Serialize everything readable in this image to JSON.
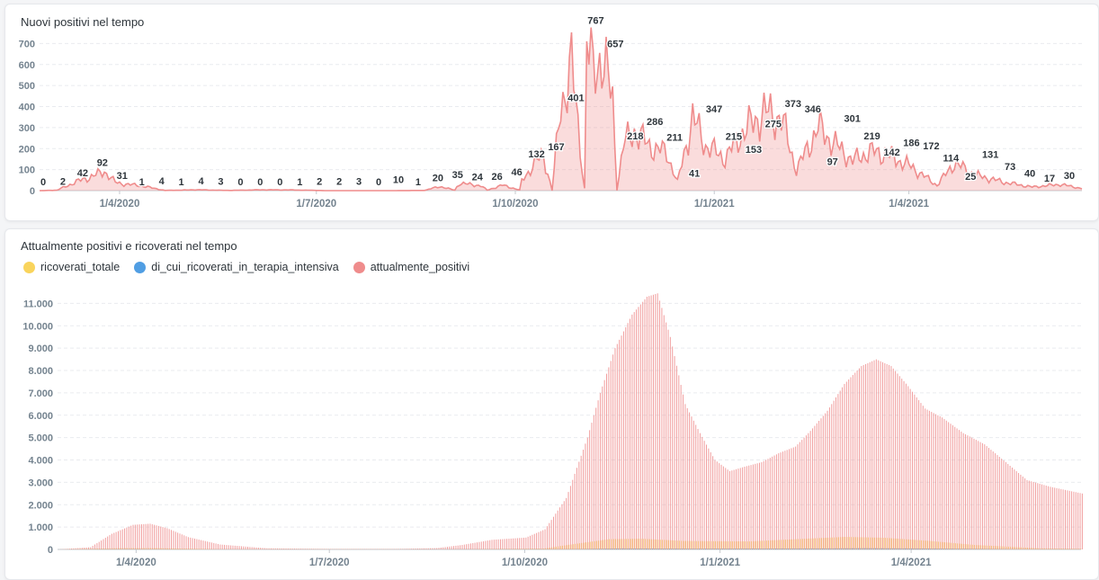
{
  "colors": {
    "attualmente_positivi": "#ef8c8c",
    "ricoverati_totale": "#f9d45c",
    "terapia_intensiva": "#509ee3",
    "grid": "#e9ebef",
    "axis_text": "#74838f"
  },
  "chart_data": [
    {
      "type": "area",
      "title": "Nuovi positivi nel tempo",
      "xlabel": "",
      "ylabel": "",
      "ylim": [
        0,
        800
      ],
      "yticks": [
        "0",
        "100",
        "200",
        "300",
        "400",
        "500",
        "600",
        "700"
      ],
      "xticks": [
        "1/4/2020",
        "1/7/2020",
        "1/10/2020",
        "1/1/2021",
        "1/4/2021"
      ],
      "x_range": [
        "2020-02-24",
        "2021-06-20"
      ],
      "grid": true,
      "series": [
        {
          "name": "",
          "points": [
            [
              "2020-02-24",
              0
            ],
            [
              "2020-03-03",
              2
            ],
            [
              "2020-03-12",
              42
            ],
            [
              "2020-03-20",
              70
            ],
            [
              "2020-03-25",
              92
            ],
            [
              "2020-03-30",
              40
            ],
            [
              "2020-04-03",
              31
            ],
            [
              "2020-04-10",
              25
            ],
            [
              "2020-04-22",
              1
            ],
            [
              "2020-05-07",
              4
            ],
            [
              "2020-05-22",
              1
            ],
            [
              "2020-06-06",
              4
            ],
            [
              "2020-06-21",
              3
            ],
            [
              "2020-07-06",
              0
            ],
            [
              "2020-07-21",
              0
            ],
            [
              "2020-08-05",
              0
            ],
            [
              "2020-08-20",
              1
            ],
            [
              "2020-09-03",
              2
            ],
            [
              "2020-09-18",
              2
            ],
            [
              "2020-10-03",
              3
            ],
            [
              "2020-10-18",
              0
            ],
            [
              "2020-11-02",
              10
            ],
            [
              "2020-11-17",
              1
            ],
            [
              "2020-08-27",
              20
            ],
            [
              "2020-09-05",
              35
            ],
            [
              "2020-09-15",
              24
            ],
            [
              "2020-09-25",
              26
            ],
            [
              "2020-10-04",
              46
            ],
            [
              "2020-10-10",
              132
            ],
            [
              "2020-10-14",
              167
            ],
            [
              "2020-10-22",
              401
            ],
            [
              "2020-10-27",
              600
            ],
            [
              "2020-11-02",
              767
            ],
            [
              "2020-11-06",
              550
            ],
            [
              "2020-11-10",
              657
            ],
            [
              "2020-11-15",
              420
            ],
            [
              "2020-11-20",
              218
            ],
            [
              "2020-11-25",
              286
            ],
            [
              "2020-12-02",
              211
            ],
            [
              "2020-12-10",
              180
            ],
            [
              "2020-12-15",
              41
            ],
            [
              "2020-12-22",
              347
            ],
            [
              "2020-12-28",
              215
            ],
            [
              "2021-01-06",
              153
            ],
            [
              "2021-01-14",
              275
            ],
            [
              "2021-01-24",
              373
            ],
            [
              "2021-02-01",
              346
            ],
            [
              "2021-02-08",
              97
            ],
            [
              "2021-02-18",
              301
            ],
            [
              "2021-02-26",
              219
            ],
            [
              "2021-03-06",
              142
            ],
            [
              "2021-03-14",
              186
            ],
            [
              "2021-03-22",
              172
            ],
            [
              "2021-04-02",
              114
            ],
            [
              "2021-04-14",
              25
            ],
            [
              "2021-04-22",
              131
            ],
            [
              "2021-05-02",
              73
            ],
            [
              "2021-05-15",
              40
            ],
            [
              "2021-05-28",
              17
            ],
            [
              "2021-06-10",
              30
            ],
            [
              "2021-06-20",
              10
            ]
          ]
        }
      ],
      "data_labels": [
        {
          "x": "2020-02-24",
          "label": "0"
        },
        {
          "x": "2020-03-05",
          "label": "2"
        },
        {
          "x": "2020-03-16",
          "label": "42"
        },
        {
          "x": "2020-03-27",
          "label": "92"
        },
        {
          "x": "2020-04-07",
          "label": "31"
        },
        {
          "x": "2020-04-18",
          "label": "1"
        },
        {
          "x": "2020-04-29",
          "label": "4"
        },
        {
          "x": "2020-05-10",
          "label": "1"
        },
        {
          "x": "2020-05-21",
          "label": "4"
        },
        {
          "x": "2020-06-01",
          "label": "3"
        },
        {
          "x": "2020-06-12",
          "label": "0"
        },
        {
          "x": "2020-06-23",
          "label": "0"
        },
        {
          "x": "2020-07-04",
          "label": "0"
        },
        {
          "x": "2020-07-15",
          "label": "1"
        },
        {
          "x": "2020-07-26",
          "label": "2"
        },
        {
          "x": "2020-08-06",
          "label": "2"
        },
        {
          "x": "2020-08-17",
          "label": "3"
        },
        {
          "x": "2020-08-28",
          "label": "0"
        },
        {
          "x": "2020-09-08",
          "label": "10"
        },
        {
          "x": "2020-09-19",
          "label": "1"
        },
        {
          "x": "2020-09-30",
          "label": "20"
        },
        {
          "x": "2020-10-11",
          "label": "35"
        },
        {
          "x": "2020-10-22",
          "label": "24"
        },
        {
          "x": "2020-11-02",
          "label": "26"
        },
        {
          "x": "2020-11-13",
          "label": "46"
        },
        {
          "x": "2020-11-24",
          "label": "132"
        },
        {
          "x": "2020-11-30",
          "label": "167"
        },
        {
          "x": "2020-12-10",
          "label": "401"
        },
        {
          "x": "2020-12-21",
          "label": "767"
        },
        {
          "x": "2021-01-01",
          "label": "657"
        },
        {
          "x": "2021-01-12",
          "label": "218"
        },
        {
          "x": "2021-01-23",
          "label": "286"
        },
        {
          "x": "2021-02-03",
          "label": "211"
        },
        {
          "x": "2021-02-14",
          "label": "41"
        },
        {
          "x": "2021-02-25",
          "label": "347"
        },
        {
          "x": "2021-03-08",
          "label": "215"
        },
        {
          "x": "2021-03-19",
          "label": "153"
        },
        {
          "x": "2021-03-30",
          "label": "275"
        },
        {
          "x": "2021-04-10",
          "label": "373"
        },
        {
          "x": "2021-04-21",
          "label": "346"
        },
        {
          "x": "2021-05-02",
          "label": "97"
        },
        {
          "x": "2021-05-13",
          "label": "301"
        },
        {
          "x": "2021-05-24",
          "label": "219"
        },
        {
          "x": "2021-06-04",
          "label": "142"
        },
        {
          "x": "2021-06-15",
          "label": "186"
        },
        {
          "x": "2021-06-26",
          "label": "172"
        },
        {
          "x": "2021-07-07",
          "label": "114"
        },
        {
          "x": "2021-07-18",
          "label": "25"
        },
        {
          "x": "2021-07-29",
          "label": "131"
        },
        {
          "x": "2021-08-09",
          "label": "73"
        },
        {
          "x": "2021-08-20",
          "label": "40"
        },
        {
          "x": "2021-08-31",
          "label": "17"
        },
        {
          "x": "2021-09-11",
          "label": "30"
        }
      ]
    },
    {
      "type": "bar",
      "title": "Attualmente positivi e ricoverati nel tempo",
      "xlabel": "",
      "ylabel": "",
      "ylim": [
        0,
        11500
      ],
      "yticks": [
        "0",
        "1.000",
        "2.000",
        "3.000",
        "4.000",
        "5.000",
        "6.000",
        "7.000",
        "8.000",
        "9.000",
        "10.000",
        "11.000"
      ],
      "xticks": [
        "1/4/2020",
        "1/7/2020",
        "1/10/2020",
        "1/1/2021",
        "1/4/2021"
      ],
      "x_range": [
        "2020-02-24",
        "2021-06-20"
      ],
      "grid": true,
      "legend": "top-left",
      "series": [
        {
          "name": "ricoverati_totale",
          "points": [
            [
              "2020-02-24",
              0
            ],
            [
              "2020-03-25",
              60
            ],
            [
              "2020-04-10",
              60
            ],
            [
              "2020-05-10",
              10
            ],
            [
              "2020-09-01",
              10
            ],
            [
              "2020-10-10",
              40
            ],
            [
              "2020-10-25",
              250
            ],
            [
              "2020-11-10",
              460
            ],
            [
              "2020-11-25",
              480
            ],
            [
              "2020-12-15",
              380
            ],
            [
              "2021-01-15",
              360
            ],
            [
              "2021-02-15",
              500
            ],
            [
              "2021-03-01",
              560
            ],
            [
              "2021-03-20",
              520
            ],
            [
              "2021-04-10",
              380
            ],
            [
              "2021-05-01",
              200
            ],
            [
              "2021-06-01",
              50
            ],
            [
              "2021-06-20",
              30
            ]
          ]
        },
        {
          "name": "di_cui_ricoverati_in_terapia_intensiva",
          "points": [
            [
              "2020-02-24",
              0
            ],
            [
              "2020-03-28",
              15
            ],
            [
              "2020-05-01",
              0
            ],
            [
              "2020-10-20",
              10
            ],
            [
              "2020-11-15",
              45
            ],
            [
              "2020-12-20",
              35
            ],
            [
              "2021-02-20",
              45
            ],
            [
              "2021-03-10",
              55
            ],
            [
              "2021-04-10",
              40
            ],
            [
              "2021-05-20",
              10
            ],
            [
              "2021-06-20",
              5
            ]
          ]
        },
        {
          "name": "attualmente_positivi",
          "points": [
            [
              "2020-02-24",
              0
            ],
            [
              "2020-03-10",
              100
            ],
            [
              "2020-03-20",
              700
            ],
            [
              "2020-03-30",
              1100
            ],
            [
              "2020-04-07",
              1150
            ],
            [
              "2020-04-15",
              950
            ],
            [
              "2020-04-25",
              550
            ],
            [
              "2020-05-10",
              220
            ],
            [
              "2020-06-01",
              50
            ],
            [
              "2020-07-01",
              20
            ],
            [
              "2020-08-01",
              20
            ],
            [
              "2020-08-20",
              60
            ],
            [
              "2020-09-01",
              200
            ],
            [
              "2020-09-15",
              430
            ],
            [
              "2020-10-01",
              530
            ],
            [
              "2020-10-10",
              900
            ],
            [
              "2020-10-20",
              2300
            ],
            [
              "2020-10-30",
              5000
            ],
            [
              "2020-11-05",
              7000
            ],
            [
              "2020-11-12",
              9000
            ],
            [
              "2020-11-20",
              10500
            ],
            [
              "2020-11-27",
              11300
            ],
            [
              "2020-12-02",
              11450
            ],
            [
              "2020-12-08",
              9500
            ],
            [
              "2020-12-15",
              6500
            ],
            [
              "2020-12-22",
              5200
            ],
            [
              "2020-12-29",
              4000
            ],
            [
              "2021-01-05",
              3500
            ],
            [
              "2021-01-12",
              3700
            ],
            [
              "2021-01-20",
              3900
            ],
            [
              "2021-01-28",
              4300
            ],
            [
              "2021-02-05",
              4600
            ],
            [
              "2021-02-12",
              5300
            ],
            [
              "2021-02-20",
              6200
            ],
            [
              "2021-02-28",
              7400
            ],
            [
              "2021-03-08",
              8200
            ],
            [
              "2021-03-15",
              8500
            ],
            [
              "2021-03-22",
              8200
            ],
            [
              "2021-03-30",
              7300
            ],
            [
              "2021-04-07",
              6300
            ],
            [
              "2021-04-15",
              5900
            ],
            [
              "2021-04-25",
              5200
            ],
            [
              "2021-05-05",
              4700
            ],
            [
              "2021-05-15",
              3900
            ],
            [
              "2021-05-25",
              3100
            ],
            [
              "2021-06-05",
              2800
            ],
            [
              "2021-06-20",
              2500
            ]
          ]
        }
      ]
    }
  ]
}
